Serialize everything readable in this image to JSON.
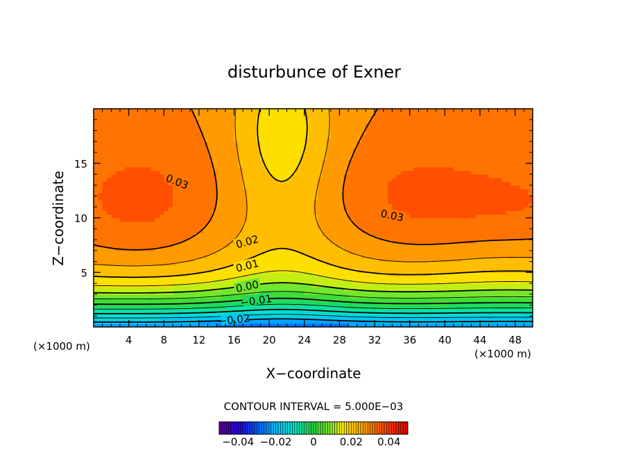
{
  "chart_data": {
    "type": "contour",
    "title": "disturbunce of Exner",
    "xlabel": "X−coordinate",
    "ylabel": "Z−coordinate",
    "x_unit": "(×1000 m)",
    "y_unit": "(×1000 m)",
    "xlim": [
      0,
      50
    ],
    "ylim": [
      0,
      20
    ],
    "x_ticks": [
      4,
      8,
      12,
      16,
      20,
      24,
      28,
      32,
      36,
      40,
      44,
      48
    ],
    "y_ticks": [
      5,
      10,
      15
    ],
    "contour_interval_text": "CONTOUR INTERVAL = 5.000E−03",
    "contour_interval": 0.005,
    "labeled_contours": [
      {
        "label": "0.03",
        "value": 0.03
      },
      {
        "label": "0.03",
        "value": 0.03
      },
      {
        "label": "0.02",
        "value": 0.02
      },
      {
        "label": "0.01",
        "value": 0.01
      },
      {
        "label": "0.00",
        "value": 0.0
      },
      {
        "label": "−0.01",
        "value": -0.01
      },
      {
        "label": "−0.02",
        "value": -0.02
      }
    ],
    "contour_levels": [
      -0.02,
      -0.015,
      -0.01,
      -0.005,
      0.0,
      0.005,
      0.01,
      0.015,
      0.02,
      0.025,
      0.03
    ],
    "field_maxima": [
      {
        "x": 5,
        "z": 11.5,
        "approx_value": 0.035
      },
      {
        "x": 37,
        "z": 11.5,
        "approx_value": 0.035
      }
    ],
    "field_minimum": {
      "x": 21,
      "z": 0,
      "approx_value": -0.025
    },
    "colorbar": {
      "range": [
        -0.05,
        0.05
      ],
      "tick_labels": [
        "−0.04",
        "−0.02",
        "0",
        "0.02",
        "0.04"
      ],
      "tick_values": [
        -0.04,
        -0.02,
        0,
        0.02,
        0.04
      ],
      "colormap": "rainbow (purple → blue → cyan → green → yellow → orange → red)"
    },
    "grid": false
  }
}
